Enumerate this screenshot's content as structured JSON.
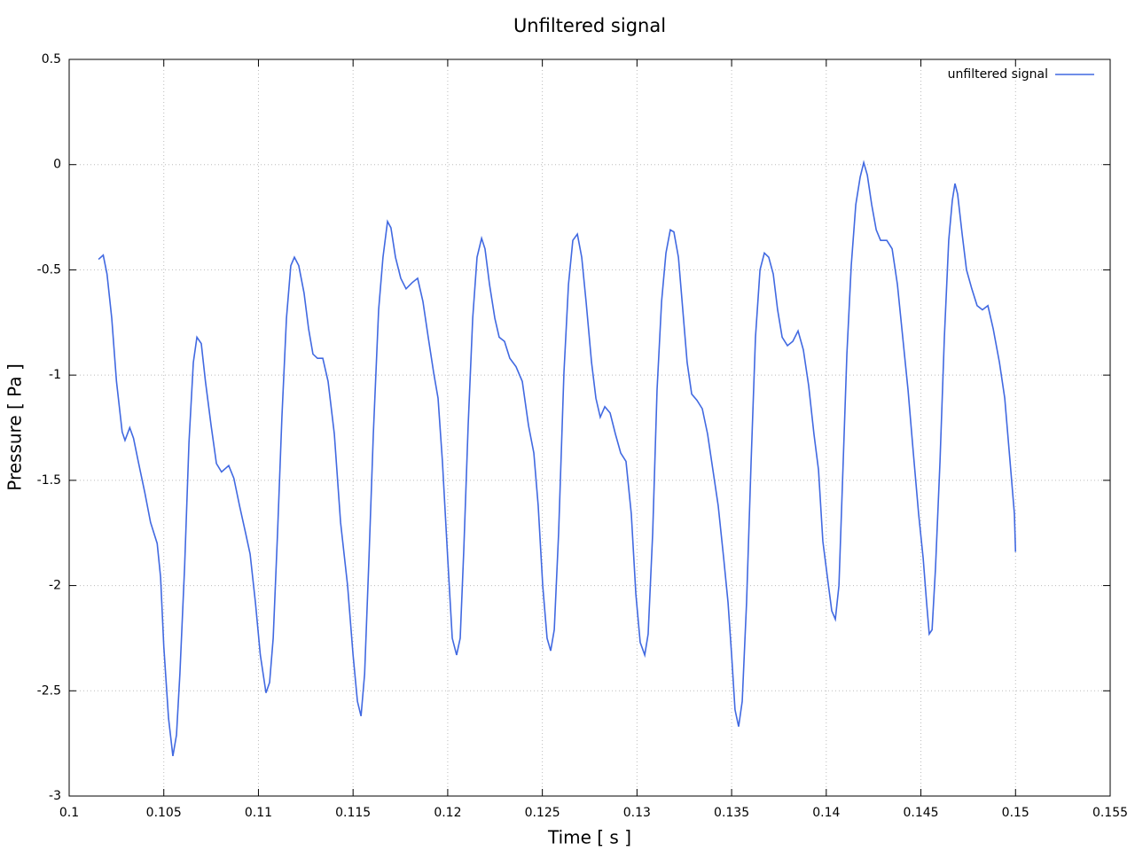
{
  "chart_data": {
    "type": "line",
    "title": "Unfiltered signal",
    "x_label": "Time [ s ]",
    "y_label": "Pressure [ Pa ]",
    "x": [
      0.10155,
      0.1018,
      0.102,
      0.10225,
      0.1025,
      0.1028,
      0.10295,
      0.1032,
      0.1034,
      0.10365,
      0.104,
      0.1043,
      0.10465,
      0.10483,
      0.105,
      0.10525,
      0.10548,
      0.10567,
      0.10585,
      0.1061,
      0.10633,
      0.10656,
      0.10675,
      0.10698,
      0.1072,
      0.1075,
      0.10778,
      0.10805,
      0.10843,
      0.1087,
      0.109,
      0.10932,
      0.10956,
      0.10984,
      0.1101,
      0.1104,
      0.11059,
      0.11078,
      0.11101,
      0.11124,
      0.11148,
      0.11171,
      0.1119,
      0.11213,
      0.11241,
      0.11265,
      0.11288,
      0.11312,
      0.1134,
      0.11368,
      0.11401,
      0.11434,
      0.11471,
      0.115,
      0.11523,
      0.11542,
      0.11561,
      0.11584,
      0.11607,
      0.11635,
      0.11658,
      0.11682,
      0.117,
      0.11724,
      0.11752,
      0.1178,
      0.11813,
      0.11841,
      0.11869,
      0.11897,
      0.11926,
      0.11949,
      0.11972,
      0.12,
      0.12024,
      0.12047,
      0.12066,
      0.12085,
      0.12108,
      0.12132,
      0.12155,
      0.12179,
      0.12197,
      0.12221,
      0.12249,
      0.12272,
      0.123,
      0.12328,
      0.12361,
      0.12394,
      0.12427,
      0.12455,
      0.12478,
      0.12502,
      0.12525,
      0.12544,
      0.12563,
      0.12586,
      0.12614,
      0.12638,
      0.12661,
      0.12685,
      0.12708,
      0.12731,
      0.1276,
      0.12783,
      0.12806,
      0.1283,
      0.12858,
      0.12886,
      0.12914,
      0.12942,
      0.1297,
      0.12994,
      0.13017,
      0.13041,
      0.13059,
      0.13083,
      0.13106,
      0.1313,
      0.13153,
      0.13176,
      0.13195,
      0.13219,
      0.13242,
      0.13265,
      0.13289,
      0.13317,
      0.13345,
      0.13373,
      0.13401,
      0.13429,
      0.13458,
      0.13481,
      0.135,
      0.13518,
      0.13537,
      0.13556,
      0.13579,
      0.13603,
      0.13626,
      0.1365,
      0.13673,
      0.13696,
      0.1372,
      0.13743,
      0.13767,
      0.13795,
      0.13823,
      0.13851,
      0.13879,
      0.13907,
      0.13935,
      0.13959,
      0.13982,
      0.14006,
      0.14029,
      0.14048,
      0.14067,
      0.14085,
      0.14109,
      0.14132,
      0.14156,
      0.14179,
      0.14198,
      0.14217,
      0.1424,
      0.14264,
      0.14287,
      0.1432,
      0.14348,
      0.14376,
      0.14404,
      0.14432,
      0.1446,
      0.14488,
      0.14512,
      0.1453,
      0.14544,
      0.14559,
      0.14577,
      0.14601,
      0.14624,
      0.14647,
      0.14666,
      0.1468,
      0.14694,
      0.14718,
      0.14741,
      0.14769,
      0.14797,
      0.14825,
      0.14854,
      0.14882,
      0.14915,
      0.14943,
      0.14971,
      0.14994,
      0.15
    ],
    "series": [
      {
        "name": "unfiltered signal",
        "color": "#4169e1",
        "values": [
          -0.45,
          -0.43,
          -0.52,
          -0.73,
          -1.03,
          -1.27,
          -1.31,
          -1.25,
          -1.3,
          -1.41,
          -1.56,
          -1.7,
          -1.8,
          -1.96,
          -2.29,
          -2.63,
          -2.81,
          -2.71,
          -2.42,
          -1.91,
          -1.32,
          -0.94,
          -0.82,
          -0.85,
          -1.03,
          -1.24,
          -1.42,
          -1.46,
          -1.43,
          -1.49,
          -1.62,
          -1.75,
          -1.85,
          -2.08,
          -2.33,
          -2.51,
          -2.46,
          -2.25,
          -1.75,
          -1.2,
          -0.73,
          -0.48,
          -0.44,
          -0.48,
          -0.61,
          -0.78,
          -0.9,
          -0.92,
          -0.92,
          -1.03,
          -1.28,
          -1.7,
          -2.0,
          -2.33,
          -2.55,
          -2.62,
          -2.42,
          -1.87,
          -1.28,
          -0.69,
          -0.44,
          -0.27,
          -0.3,
          -0.44,
          -0.54,
          -0.59,
          -0.56,
          -0.54,
          -0.65,
          -0.82,
          -0.99,
          -1.11,
          -1.41,
          -1.87,
          -2.25,
          -2.33,
          -2.25,
          -1.83,
          -1.24,
          -0.73,
          -0.44,
          -0.35,
          -0.4,
          -0.57,
          -0.73,
          -0.82,
          -0.84,
          -0.92,
          -0.96,
          -1.03,
          -1.24,
          -1.37,
          -1.62,
          -2.0,
          -2.25,
          -2.31,
          -2.21,
          -1.75,
          -0.99,
          -0.57,
          -0.36,
          -0.33,
          -0.44,
          -0.65,
          -0.94,
          -1.11,
          -1.2,
          -1.15,
          -1.18,
          -1.28,
          -1.37,
          -1.41,
          -1.66,
          -2.04,
          -2.27,
          -2.33,
          -2.23,
          -1.75,
          -1.07,
          -0.65,
          -0.42,
          -0.31,
          -0.32,
          -0.44,
          -0.69,
          -0.94,
          -1.09,
          -1.12,
          -1.16,
          -1.28,
          -1.45,
          -1.62,
          -1.87,
          -2.08,
          -2.33,
          -2.59,
          -2.67,
          -2.55,
          -2.08,
          -1.41,
          -0.82,
          -0.5,
          -0.42,
          -0.44,
          -0.52,
          -0.69,
          -0.82,
          -0.86,
          -0.84,
          -0.79,
          -0.88,
          -1.05,
          -1.28,
          -1.45,
          -1.79,
          -1.96,
          -2.12,
          -2.16,
          -2.0,
          -1.53,
          -0.9,
          -0.48,
          -0.19,
          -0.06,
          0.01,
          -0.05,
          -0.19,
          -0.31,
          -0.36,
          -0.36,
          -0.4,
          -0.57,
          -0.82,
          -1.07,
          -1.37,
          -1.66,
          -1.87,
          -2.08,
          -2.23,
          -2.21,
          -1.92,
          -1.41,
          -0.82,
          -0.36,
          -0.17,
          -0.09,
          -0.14,
          -0.33,
          -0.5,
          -0.59,
          -0.67,
          -0.69,
          -0.67,
          -0.78,
          -0.94,
          -1.11,
          -1.41,
          -1.66,
          -1.84
        ]
      }
    ],
    "xlim": [
      0.1,
      0.155
    ],
    "xticks": [
      0.1,
      0.105,
      0.11,
      0.115,
      0.12,
      0.125,
      0.13,
      0.135,
      0.14,
      0.145,
      0.15,
      0.155
    ],
    "ylim": [
      -3,
      0.5
    ],
    "yticks": [
      0.5,
      0,
      -0.5,
      -1,
      -1.5,
      -2,
      -2.5,
      -3
    ],
    "grid": true,
    "legend": "top-right"
  }
}
